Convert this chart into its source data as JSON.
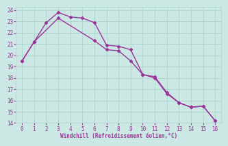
{
  "xlabel": "Windchill (Refroidissement éolien,°C)",
  "background_color": "#cce8e4",
  "grid_color": "#aad4cc",
  "line_color": "#993399",
  "xlim": [
    -0.5,
    16.5
  ],
  "ylim": [
    14,
    24.3
  ],
  "xticks": [
    0,
    1,
    2,
    3,
    4,
    5,
    6,
    7,
    8,
    9,
    10,
    11,
    12,
    13,
    14,
    15,
    16
  ],
  "yticks": [
    14,
    15,
    16,
    17,
    18,
    19,
    20,
    21,
    22,
    23,
    24
  ],
  "series1_x": [
    0,
    1,
    2,
    3,
    4,
    5,
    6,
    7,
    8,
    9,
    10,
    11,
    12,
    13,
    14,
    15,
    16
  ],
  "series1_y": [
    19.5,
    21.2,
    22.9,
    23.8,
    23.4,
    23.3,
    22.9,
    20.9,
    20.8,
    20.5,
    18.3,
    18.1,
    16.7,
    15.8,
    15.4,
    15.5,
    14.2
  ],
  "series2_x": [
    0,
    1,
    3,
    6,
    7,
    8,
    9,
    10,
    11,
    12,
    13,
    14,
    15,
    16
  ],
  "series2_y": [
    19.5,
    21.2,
    23.3,
    21.3,
    20.5,
    20.4,
    19.5,
    18.3,
    18.0,
    16.6,
    15.8,
    15.4,
    15.5,
    14.2
  ],
  "marker": "D",
  "markersize": 2.5,
  "linewidth": 1.0
}
